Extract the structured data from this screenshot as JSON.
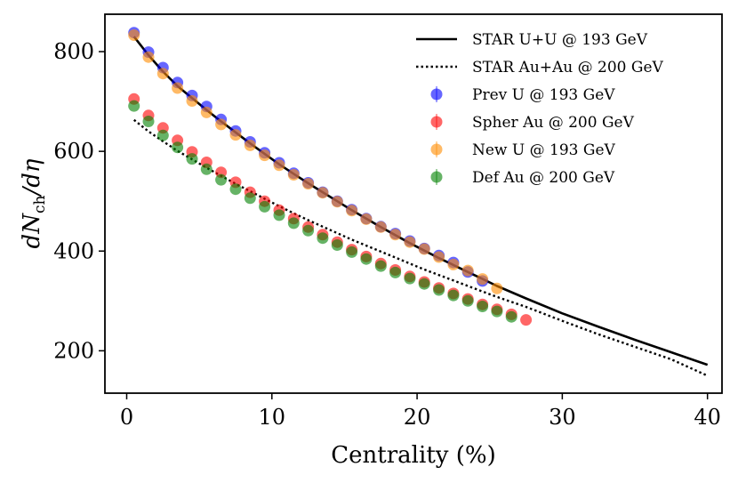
{
  "chart_data": {
    "type": "scatter",
    "title": "",
    "xlabel": "Centrality (%)",
    "ylabel": "dN_ch/dη",
    "ylabel_main": "dN",
    "ylabel_sub": "ch",
    "ylabel_tail": "/dη",
    "xlim": [
      -1.5,
      41.0
    ],
    "ylim": [
      115,
      875
    ],
    "xticks": [
      0,
      10,
      20,
      30,
      40
    ],
    "yticks": [
      200,
      400,
      600,
      800
    ],
    "grid": false,
    "legend_position": "top-right",
    "lines": [
      {
        "name": "STAR U+U @ 193 GeV",
        "style": "solid",
        "color": "#000000",
        "x": [
          0.5,
          1.5,
          2.5,
          3.5,
          4.5,
          5.5,
          6.5,
          7.5,
          8.5,
          9.5,
          10.5,
          11.5,
          12.5,
          13.5,
          14.5,
          15.5,
          16.5,
          17.5,
          18.5,
          19.5,
          20.5,
          21.5,
          22.5,
          23.5,
          24.5,
          25.5,
          27.5,
          30,
          32.5,
          35,
          37.5,
          40
        ],
        "y": [
          830,
          793,
          760,
          731,
          707,
          683,
          660,
          638,
          616,
          595,
          574,
          555,
          536,
          518,
          500,
          482,
          465,
          448,
          432,
          416,
          401,
          386,
          372,
          358,
          344,
          330,
          305,
          275,
          248,
          222,
          197,
          172
        ]
      },
      {
        "name": "STAR Au+Au @ 200 GeV",
        "style": "dotted",
        "color": "#000000",
        "x": [
          0.5,
          1.5,
          2.5,
          3.5,
          4.5,
          5.5,
          6.5,
          7.5,
          8.5,
          9.5,
          10.5,
          11.5,
          12.5,
          13.5,
          14.5,
          15.5,
          16.5,
          17.5,
          18.5,
          19.5,
          20.5,
          21.5,
          22.5,
          23.5,
          24.5,
          25.5,
          26.5,
          27.5,
          30,
          32.5,
          35,
          37.5,
          40
        ],
        "y": [
          663,
          640,
          620,
          601,
          584,
          567,
          551,
          535,
          520,
          505,
          490,
          476,
          462,
          449,
          436,
          423,
          411,
          399,
          387,
          375,
          363,
          352,
          341,
          330,
          319,
          308,
          298,
          288,
          260,
          233,
          208,
          183,
          150
        ]
      }
    ],
    "series": [
      {
        "name": "Prev U @ 193 GeV",
        "color": "#0000ff",
        "x": [
          0.5,
          1.5,
          2.5,
          3.5,
          4.5,
          5.5,
          6.5,
          7.5,
          8.5,
          9.5,
          10.5,
          11.5,
          12.5,
          13.5,
          14.5,
          15.5,
          16.5,
          17.5,
          18.5,
          19.5,
          20.5,
          21.5,
          22.5,
          23.5,
          24.5
        ],
        "y": [
          838,
          799,
          768,
          738,
          712,
          690,
          664,
          641,
          619,
          597,
          577,
          556,
          537,
          518,
          500,
          483,
          465,
          449,
          435,
          420,
          405,
          391,
          377,
          358,
          340
        ]
      },
      {
        "name": "Spher Au @ 200 GeV",
        "color": "#ff0000",
        "x": [
          0.5,
          1.5,
          2.5,
          3.5,
          4.5,
          5.5,
          6.5,
          7.5,
          8.5,
          9.5,
          10.5,
          11.5,
          12.5,
          13.5,
          14.5,
          15.5,
          16.5,
          17.5,
          18.5,
          19.5,
          20.5,
          21.5,
          22.5,
          23.5,
          24.5,
          25.5,
          26.5,
          27.5
        ],
        "y": [
          705,
          672,
          647,
          622,
          599,
          578,
          558,
          538,
          518,
          500,
          482,
          465,
          448,
          433,
          418,
          403,
          389,
          375,
          362,
          349,
          338,
          326,
          315,
          304,
          293,
          283,
          273,
          262
        ]
      },
      {
        "name": "New U @ 193 GeV",
        "color": "#ff8c00",
        "x": [
          0.5,
          1.5,
          2.5,
          3.5,
          4.5,
          5.5,
          6.5,
          7.5,
          8.5,
          9.5,
          10.5,
          11.5,
          12.5,
          13.5,
          14.5,
          15.5,
          16.5,
          17.5,
          18.5,
          19.5,
          20.5,
          21.5,
          22.5,
          23.5,
          24.5,
          25.5
        ],
        "y": [
          833,
          789,
          756,
          727,
          701,
          678,
          654,
          633,
          612,
          592,
          572,
          553,
          535,
          517,
          499,
          481,
          464,
          448,
          433,
          418,
          404,
          388,
          373,
          361,
          344,
          325
        ]
      },
      {
        "name": "Def Au @ 200 GeV",
        "color": "#008000",
        "x": [
          0.5,
          1.5,
          2.5,
          3.5,
          4.5,
          5.5,
          6.5,
          7.5,
          8.5,
          9.5,
          10.5,
          11.5,
          12.5,
          13.5,
          14.5,
          15.5,
          16.5,
          17.5,
          18.5,
          19.5,
          20.5,
          21.5,
          22.5,
          23.5,
          24.5,
          25.5,
          26.5
        ],
        "y": [
          691,
          660,
          632,
          608,
          585,
          564,
          543,
          524,
          506,
          489,
          472,
          456,
          441,
          426,
          412,
          398,
          384,
          370,
          357,
          345,
          334,
          322,
          311,
          300,
          289,
          279,
          268
        ]
      }
    ]
  }
}
